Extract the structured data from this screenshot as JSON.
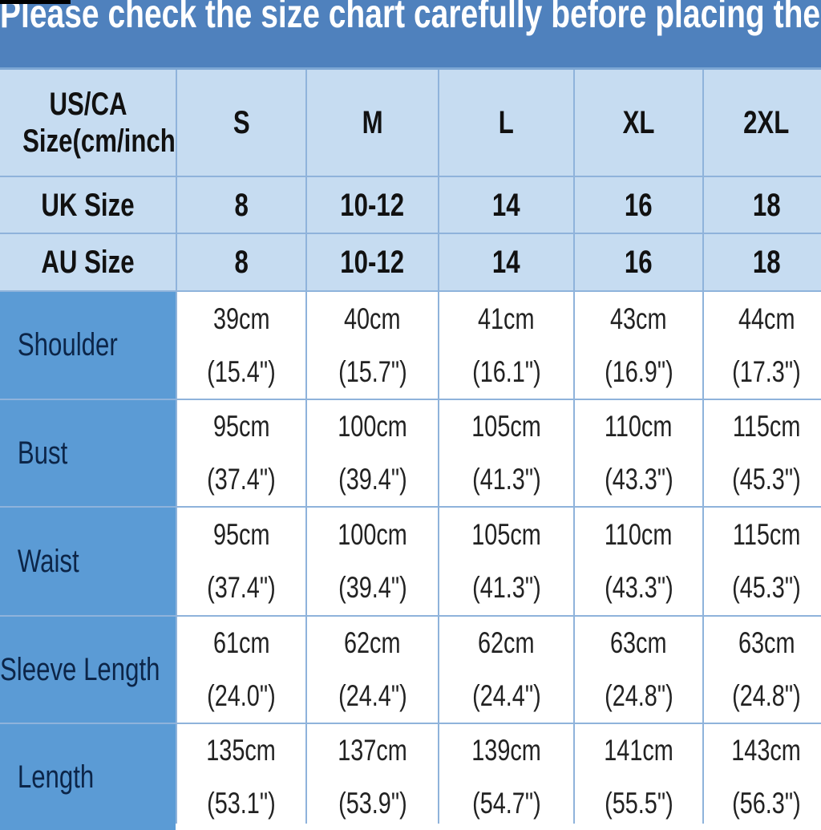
{
  "banner": "Please check the size chart carefully before placing the o",
  "header_rows": [
    {
      "label": "US/CA Size(cm/inch)",
      "values": [
        "S",
        "M",
        "L",
        "XL",
        "2XL"
      ]
    },
    {
      "label": "UK Size",
      "values": [
        "8",
        "10-12",
        "14",
        "16",
        "18"
      ]
    },
    {
      "label": "AU Size",
      "values": [
        "8",
        "10-12",
        "14",
        "16",
        "18"
      ]
    }
  ],
  "rows": [
    {
      "label": "Shoulder",
      "cm": [
        "39cm",
        "40cm",
        "41cm",
        "43cm",
        "44cm"
      ],
      "inch": [
        "(15.4\")",
        "(15.7\")",
        "(16.1\")",
        "(16.9\")",
        "(17.3\")"
      ]
    },
    {
      "label": "Bust",
      "cm": [
        "95cm",
        "100cm",
        "105cm",
        "110cm",
        "115cm"
      ],
      "inch": [
        "(37.4\")",
        "(39.4\")",
        "(41.3\")",
        "(43.3\")",
        "(45.3\")"
      ]
    },
    {
      "label": "Waist",
      "cm": [
        "95cm",
        "100cm",
        "105cm",
        "110cm",
        "115cm"
      ],
      "inch": [
        "(37.4\")",
        "(39.4\")",
        "(41.3\")",
        "(43.3\")",
        "(45.3\")"
      ]
    },
    {
      "label": "Sleeve Length",
      "cm": [
        "61cm",
        "62cm",
        "62cm",
        "63cm",
        "63cm"
      ],
      "inch": [
        "(24.0\")",
        "(24.4\")",
        "(24.4\")",
        "(24.8\")",
        "(24.8\")"
      ]
    },
    {
      "label": "Length",
      "cm": [
        "135cm",
        "137cm",
        "139cm",
        "141cm",
        "143cm"
      ],
      "inch": [
        "(53.1\")",
        "(53.9\")",
        "(54.7\")",
        "(55.5\")",
        "(56.3\")"
      ]
    }
  ],
  "colors": {
    "banner": "#4f81bd",
    "header": "#c6dcf1",
    "label_column": "#5b9bd5",
    "grid_line": "#8fb3db"
  }
}
